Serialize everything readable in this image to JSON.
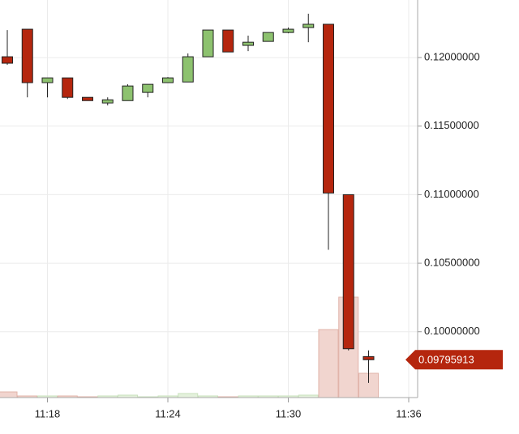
{
  "chart_data": {
    "type": "candlestick",
    "categories": [
      null,
      null,
      "11:18",
      null,
      null,
      null,
      null,
      null,
      "11:24",
      null,
      null,
      null,
      null,
      null,
      "11:30",
      null,
      null,
      null,
      null,
      null,
      "11:36"
    ],
    "open": [
      0.12006,
      0.12207,
      0.11817,
      0.11852,
      0.1171,
      0.11669,
      0.11686,
      0.11746,
      0.11817,
      0.11822,
      0.12006,
      0.12201,
      0.12089,
      0.12118,
      0.12183,
      0.12219,
      0.12243,
      0.11,
      0.09819,
      null,
      null
    ],
    "high": [
      0.12201,
      0.12207,
      0.11852,
      0.11852,
      0.1171,
      0.1171,
      0.11805,
      0.11805,
      0.11858,
      0.1203,
      0.12201,
      0.12201,
      0.1216,
      0.12183,
      0.12219,
      0.1232,
      0.12243,
      0.11,
      0.09864,
      null,
      null
    ],
    "low": [
      0.11947,
      0.1171,
      0.1171,
      0.11698,
      0.11686,
      0.11651,
      0.11686,
      0.1171,
      0.11817,
      0.11822,
      0.12006,
      0.12041,
      0.12047,
      0.12118,
      0.12177,
      0.12112,
      0.10598,
      0.09864,
      0.09627,
      null,
      null
    ],
    "close": [
      0.11959,
      0.11817,
      0.11852,
      0.1171,
      0.11686,
      0.11692,
      0.11793,
      0.11805,
      0.11852,
      0.12006,
      0.12201,
      0.12041,
      0.12112,
      0.12183,
      0.12207,
      0.12243,
      0.11012,
      0.09876,
      0.09796,
      null,
      null
    ],
    "volume": [
      7,
      2,
      2,
      2,
      1,
      2,
      3,
      1,
      2,
      5,
      2,
      1,
      2,
      2,
      2,
      3,
      84,
      124,
      30,
      null,
      null
    ],
    "vlim": [
      0,
      491
    ],
    "up_color": "#8dc26f",
    "down_color": "#b5260e",
    "volume_up_color": "#e4f1dc",
    "volume_down_color": "#f1d5cf",
    "ylim": [
      0.0952,
      0.1242
    ],
    "yticks": [
      {
        "value": 0.1,
        "label": "0.10000000"
      },
      {
        "value": 0.105,
        "label": "0.10500000"
      },
      {
        "value": 0.11,
        "label": "0.11000000"
      },
      {
        "value": 0.115,
        "label": "0.11500000"
      },
      {
        "value": 0.12,
        "label": "0.12000000"
      }
    ],
    "grid": true,
    "last_price": 0.09795913
  }
}
